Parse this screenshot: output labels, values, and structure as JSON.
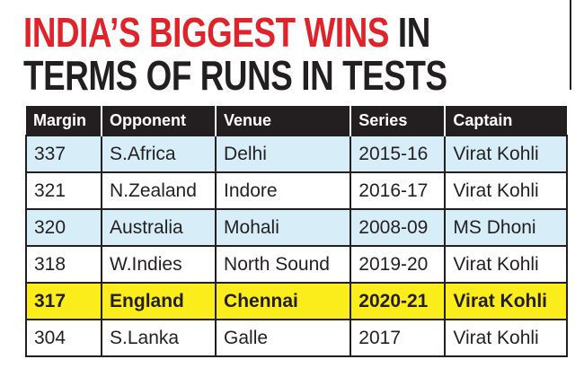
{
  "title": {
    "highlight": "INDIA’S BIGGEST WINS",
    "rest": "IN",
    "line2": "TERMS OF RUNS IN TESTS"
  },
  "table": {
    "header": [
      "Margin",
      "Opponent",
      "Venue",
      "Series",
      "Captain"
    ],
    "rows": [
      [
        "337",
        "S.Africa",
        "Delhi",
        "2015-16",
        "Virat Kohli"
      ],
      [
        "321",
        "N.Zealand",
        "Indore",
        "2016-17",
        "Virat Kohli"
      ],
      [
        "320",
        "Australia",
        "Mohali",
        "2008-09",
        "MS Dhoni"
      ],
      [
        "318",
        "W.Indies",
        "North Sound",
        "2019-20",
        "Virat Kohli"
      ],
      [
        "317",
        "England",
        "Chennai",
        "2020-21",
        "Virat Kohli"
      ],
      [
        "304",
        "S.Lanka",
        "Galle",
        "2017",
        "Virat Kohli"
      ]
    ]
  }
}
